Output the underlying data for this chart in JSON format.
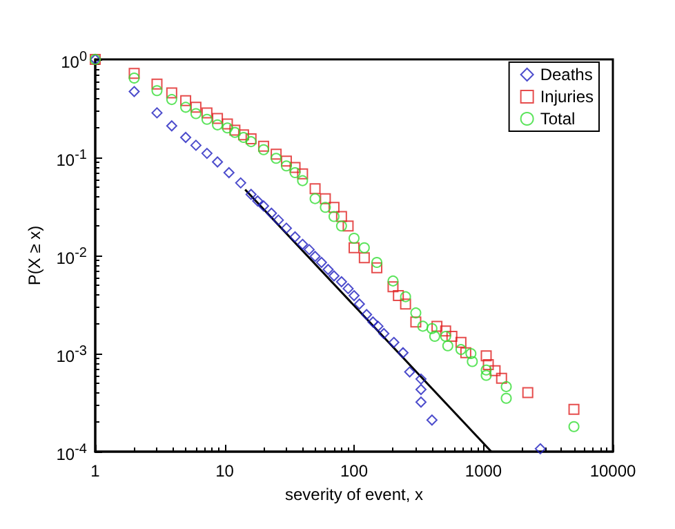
{
  "chart_data": {
    "type": "scatter",
    "xlabel": "severity of event, x",
    "ylabel": "P(X ≥ x)",
    "log": "xy",
    "grid": false,
    "legend": "top right",
    "xlim": [
      1,
      10000
    ],
    "xticks": [
      1,
      10,
      100,
      1000,
      10000
    ],
    "ylim": [
      0.0001,
      1
    ],
    "yticks": [
      {
        "value": 0.0001,
        "label": "10$^{-4}$"
      },
      {
        "value": 0.001,
        "label": "10$^{-3}$"
      },
      {
        "value": 0.01,
        "label": "10$^{-2}$"
      },
      {
        "value": 0.1,
        "label": "10$^{-1}$"
      },
      {
        "value": 1,
        "label": "10$^{0}$"
      }
    ],
    "series": [
      {
        "name": "Deaths",
        "color": "#1f1fbf",
        "marker": "diamond",
        "x": [
          1,
          2,
          3,
          3.9,
          5,
          6,
          7.3,
          8.8,
          10.8,
          13.3,
          16,
          18,
          20,
          23,
          26,
          30,
          35,
          40,
          45,
          50,
          56,
          63,
          70,
          80,
          90,
          100,
          110,
          125,
          140,
          153,
          170,
          203,
          239,
          269,
          329,
          329,
          329,
          400,
          2750
        ],
        "values": [
          1,
          0.47,
          0.285,
          0.21,
          0.16,
          0.133,
          0.11,
          0.09,
          0.07,
          0.055,
          0.042,
          0.036,
          0.032,
          0.027,
          0.023,
          0.019,
          0.0155,
          0.013,
          0.0115,
          0.0098,
          0.0085,
          0.0072,
          0.0062,
          0.0054,
          0.0046,
          0.0039,
          0.0032,
          0.0025,
          0.0021,
          0.0019,
          0.0016,
          0.0013,
          0.00102,
          0.00065,
          0.00055,
          0.00043,
          0.00032,
          0.00021,
          0.000107
        ]
      },
      {
        "name": "Injuries",
        "color": "#e02020",
        "marker": "square",
        "x": [
          1,
          2,
          3,
          3.9,
          5,
          6,
          7.3,
          8.8,
          10.5,
          12,
          14,
          16,
          20,
          25,
          30,
          35,
          40,
          50,
          60,
          70,
          80,
          90,
          100,
          120,
          150,
          200,
          220,
          250,
          300,
          437,
          510,
          570,
          670,
          730,
          1050,
          1090,
          1230,
          1380,
          2200,
          5000
        ],
        "values": [
          1,
          0.72,
          0.56,
          0.455,
          0.38,
          0.325,
          0.285,
          0.25,
          0.22,
          0.19,
          0.17,
          0.155,
          0.13,
          0.108,
          0.092,
          0.079,
          0.068,
          0.048,
          0.038,
          0.031,
          0.025,
          0.02,
          0.012,
          0.0095,
          0.0075,
          0.0048,
          0.0039,
          0.0032,
          0.0021,
          0.0019,
          0.0017,
          0.0015,
          0.0013,
          0.00102,
          0.00095,
          0.00077,
          0.00067,
          0.00056,
          0.0004,
          0.00027
        ]
      },
      {
        "name": "Total",
        "color": "#33dd33",
        "marker": "circle",
        "x": [
          1,
          2,
          3,
          3.9,
          5,
          6,
          7.3,
          8.8,
          10.5,
          12,
          14,
          16,
          20,
          25,
          30,
          35,
          40,
          50,
          60,
          70,
          80,
          100,
          120,
          150,
          200,
          250,
          300,
          340,
          400,
          420,
          510,
          530,
          670,
          800,
          820,
          1050,
          1050,
          1500,
          1500,
          5000
        ],
        "values": [
          1,
          0.645,
          0.48,
          0.39,
          0.325,
          0.28,
          0.245,
          0.215,
          0.2,
          0.18,
          0.16,
          0.145,
          0.12,
          0.098,
          0.082,
          0.07,
          0.058,
          0.038,
          0.031,
          0.025,
          0.02,
          0.015,
          0.012,
          0.0085,
          0.0055,
          0.0038,
          0.0026,
          0.0019,
          0.0018,
          0.0015,
          0.0015,
          0.0012,
          0.0011,
          0.001,
          0.00083,
          0.00068,
          0.0006,
          0.00046,
          0.00035,
          0.00018
        ]
      },
      {
        "type": "line",
        "color": "#000000",
        "marker": "none",
        "x": [
          14.4,
          1150
        ],
        "values": [
          0.047,
          0.0001
        ]
      }
    ]
  }
}
